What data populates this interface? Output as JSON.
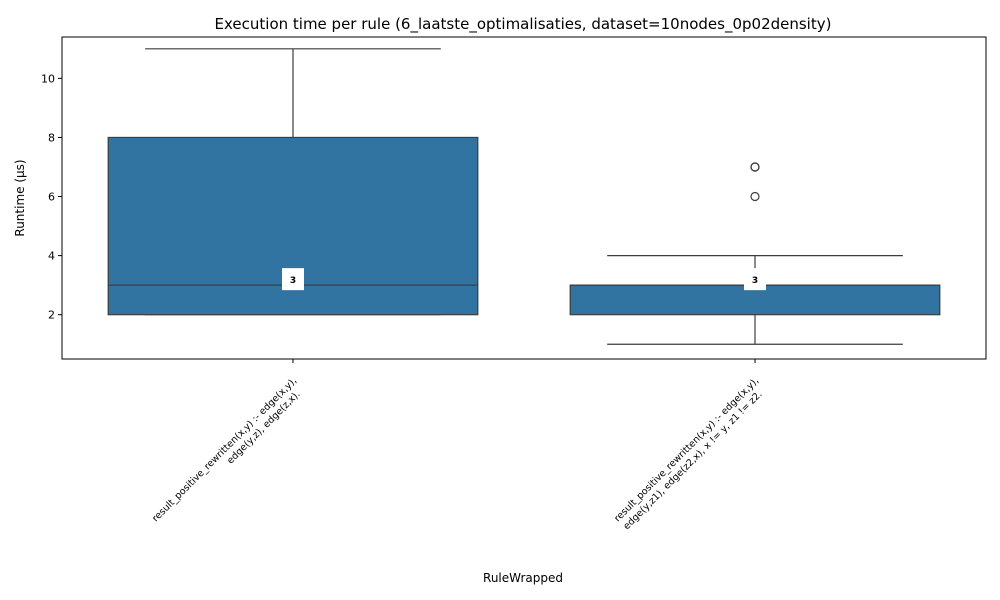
{
  "chart_data": {
    "type": "box",
    "title": "Execution time per rule (6_laatste_optimalisaties, dataset=10nodes_0p02density)",
    "xlabel": "RuleWrapped",
    "ylabel": "Runtime (µs)",
    "ylim": [
      0.5,
      11.4
    ],
    "yticks": [
      2,
      4,
      6,
      8,
      10
    ],
    "grid": false,
    "box_color": "#3274a1",
    "line_color": "#3d3d3d",
    "boxes": [
      {
        "label_lines": [
          "result_positive_rewritten(x,y) :-     edge(x,y),",
          "edge(y,z),     edge(z,x)."
        ],
        "whisker_low": 2,
        "q1": 2,
        "median": 3,
        "q3": 8,
        "whisker_high": 11,
        "outliers": [],
        "median_label": "3"
      },
      {
        "label_lines": [
          "result_positive_rewritten(x,y) :-     edge(x,y),",
          "edge(y,z1),   edge(z2,x),   x != y,     z1 != z2."
        ],
        "whisker_low": 1,
        "q1": 2,
        "median": 3,
        "q3": 3,
        "whisker_high": 4,
        "outliers": [
          6,
          7,
          7
        ],
        "median_label": "3"
      }
    ]
  }
}
